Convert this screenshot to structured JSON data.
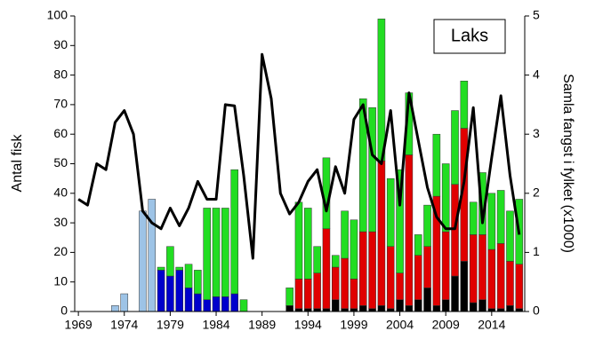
{
  "chart_data": {
    "type": "bar+line",
    "title": "Laks",
    "y_label": "Antal fisk",
    "y2_label": "Samla fangst i fylket (x1000)",
    "x": [
      1969,
      1970,
      1971,
      1972,
      1973,
      1974,
      1975,
      1976,
      1977,
      1978,
      1979,
      1980,
      1981,
      1982,
      1983,
      1984,
      1985,
      1986,
      1987,
      1988,
      1989,
      1990,
      1991,
      1992,
      1993,
      1994,
      1995,
      1996,
      1997,
      1998,
      1999,
      2000,
      2001,
      2002,
      2003,
      2004,
      2005,
      2006,
      2007,
      2008,
      2009,
      2010,
      2011,
      2012,
      2013,
      2014,
      2015,
      2016,
      2017
    ],
    "xlim": [
      1968.6,
      2017.6
    ],
    "xticks": [
      1969,
      1974,
      1979,
      1984,
      1989,
      1994,
      1999,
      2004,
      2009,
      2014
    ],
    "ylim": [
      0,
      100
    ],
    "yticks": [
      0,
      10,
      20,
      30,
      40,
      50,
      60,
      70,
      80,
      90,
      100
    ],
    "y2lim": [
      0,
      5
    ],
    "y2ticks": [
      0,
      1,
      2,
      3,
      4,
      5
    ],
    "series": [
      {
        "color": "#9dc3e6",
        "values": [
          null,
          null,
          null,
          null,
          2,
          6,
          null,
          34,
          38,
          null,
          null,
          null,
          null,
          null,
          null,
          null,
          null,
          null,
          null,
          null,
          null,
          null,
          null,
          null,
          null,
          null,
          null,
          null,
          null,
          null,
          null,
          null,
          null,
          null,
          null,
          null,
          null,
          null,
          null,
          null,
          null,
          null,
          null,
          null,
          null,
          null,
          null,
          null,
          null
        ]
      },
      {
        "color": "#0000cc",
        "values": [
          null,
          null,
          null,
          null,
          null,
          null,
          null,
          null,
          null,
          14,
          12,
          14,
          8,
          6,
          4,
          5,
          5,
          6,
          null,
          null,
          null,
          null,
          null,
          null,
          null,
          null,
          null,
          null,
          null,
          null,
          null,
          null,
          null,
          null,
          null,
          null,
          null,
          null,
          null,
          null,
          null,
          null,
          null,
          null,
          null,
          null,
          null,
          null,
          null
        ]
      },
      {
        "color": "#000000",
        "values": [
          null,
          null,
          null,
          null,
          null,
          null,
          null,
          null,
          null,
          null,
          null,
          null,
          null,
          null,
          null,
          null,
          null,
          null,
          null,
          null,
          null,
          null,
          null,
          2,
          1,
          1,
          1,
          1,
          4,
          1,
          1,
          2,
          1,
          2,
          1,
          4,
          2,
          4,
          8,
          2,
          4,
          12,
          17,
          3,
          4,
          1,
          1,
          2,
          1
        ]
      },
      {
        "color": "#e00000",
        "values": [
          null,
          null,
          null,
          null,
          null,
          null,
          null,
          null,
          null,
          null,
          null,
          null,
          null,
          null,
          null,
          null,
          null,
          null,
          null,
          null,
          null,
          null,
          null,
          null,
          10,
          10,
          12,
          27,
          11,
          17,
          10,
          25,
          26,
          49,
          21,
          9,
          51,
          15,
          14,
          37,
          23,
          31,
          45,
          23,
          22,
          20,
          22,
          15,
          15
        ]
      },
      {
        "color": "#22dd22",
        "values": [
          null,
          null,
          null,
          null,
          null,
          null,
          null,
          null,
          null,
          1,
          10,
          1,
          8,
          8,
          31,
          30,
          30,
          42,
          4,
          null,
          null,
          null,
          null,
          6,
          26,
          24,
          9,
          24,
          4,
          16,
          20,
          45,
          42,
          48,
          23,
          35,
          21,
          7,
          14,
          21,
          23,
          25,
          16,
          11,
          21,
          19,
          18,
          17,
          22
        ]
      },
      {
        "color": "#000000",
        "axis": "y2",
        "type": "line",
        "values": [
          1.9,
          1.8,
          2.5,
          2.4,
          3.2,
          3.4,
          3.0,
          1.7,
          1.5,
          1.4,
          1.75,
          1.45,
          1.75,
          2.2,
          1.9,
          1.9,
          3.5,
          3.48,
          2.3,
          0.9,
          4.35,
          3.6,
          2.0,
          1.65,
          1.85,
          2.2,
          2.4,
          1.7,
          2.45,
          2.0,
          3.25,
          3.5,
          2.65,
          2.5,
          3.4,
          1.8,
          3.7,
          2.9,
          2.1,
          1.6,
          1.4,
          1.4,
          2.2,
          3.45,
          1.5,
          2.6,
          3.65,
          2.3,
          1.3
        ]
      }
    ]
  }
}
